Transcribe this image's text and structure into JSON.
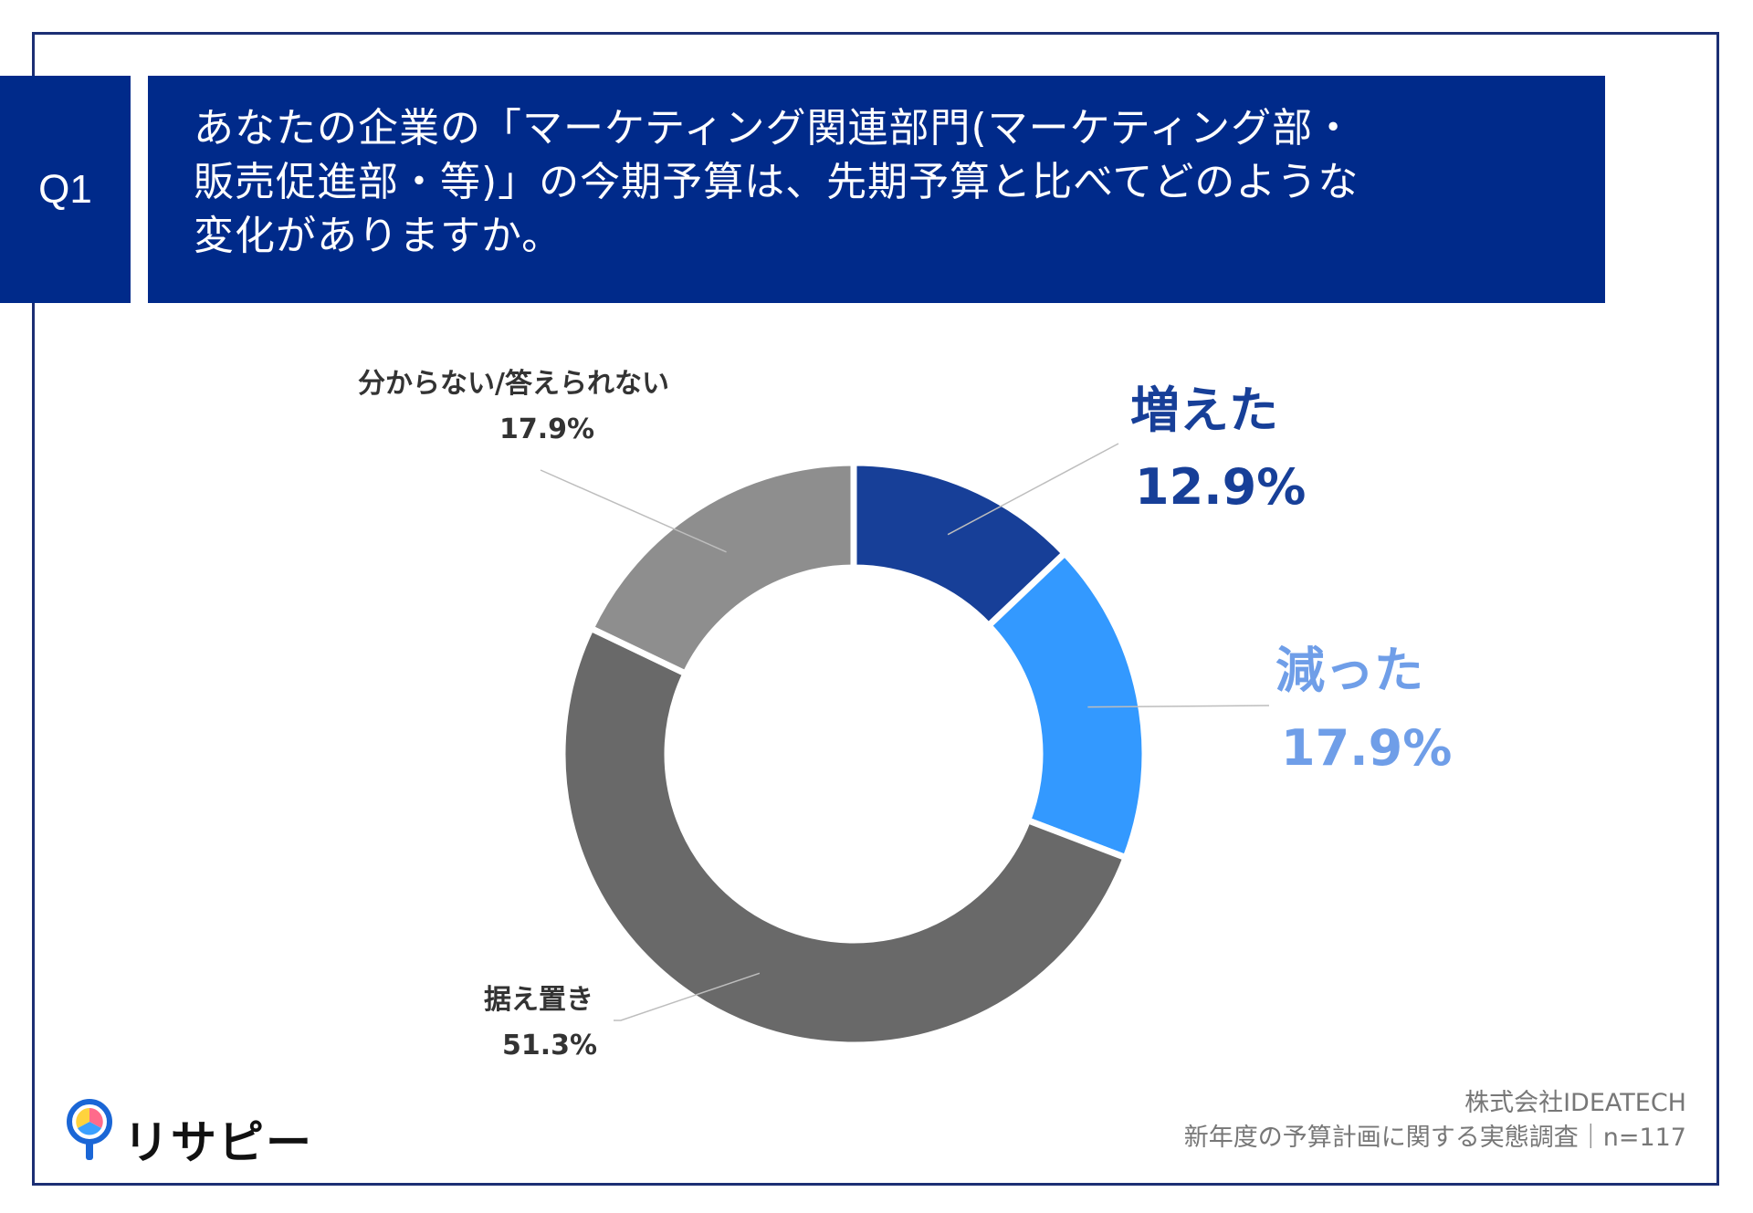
{
  "header": {
    "badge": "Q1",
    "question_lines": [
      "あなたの企業の「マーケティング関連部門(マーケティング部・",
      "販売促進部・等)」の今期予算は、先期予算と比べてどのような",
      "変化がありますか。"
    ]
  },
  "chart_data": {
    "type": "pie",
    "style": "donut",
    "slices": [
      {
        "label": "増えた",
        "value": 12.9,
        "value_label": "12.9%",
        "color": "#173f98"
      },
      {
        "label": "減った",
        "value": 17.9,
        "value_label": "17.9%",
        "color": "#3399ff"
      },
      {
        "label": "据え置き",
        "value": 51.3,
        "value_label": "51.3%",
        "color": "#696969"
      },
      {
        "label": "分からない/答えられない",
        "value": 17.9,
        "value_label": "17.9%",
        "color": "#8e8e8e"
      }
    ],
    "label_colors": {
      "増えた": "#173f98",
      "減った": "#6f9ee8",
      "据え置き": "#333333",
      "分からない/答えられない": "#333333"
    }
  },
  "footer": {
    "company": "株式会社IDEATECH",
    "survey": "新年度の予算計画に関する実態調査｜n=117",
    "logo_text": "リサピー",
    "logo_icon": "pin-logo-icon"
  },
  "colors": {
    "brand_navy": "#002a8a",
    "frame": "#1c2f74"
  }
}
